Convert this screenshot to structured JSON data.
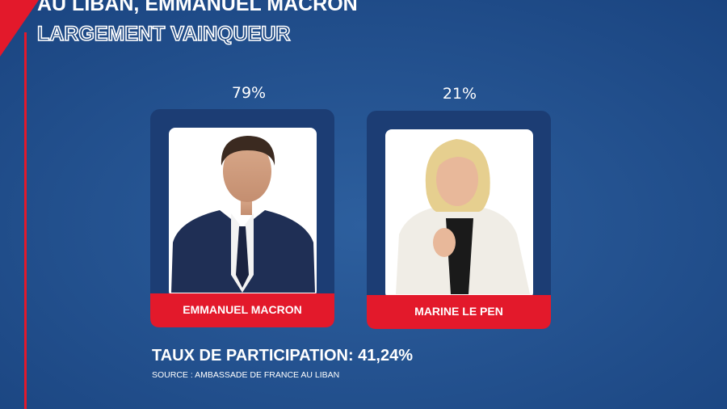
{
  "header": {
    "line1": "AU LIBAN, EMMANUEL MACRON",
    "line2": "LARGEMENT VAINQUEUR"
  },
  "candidates": [
    {
      "name": "EMMANUEL MACRON",
      "score": "79%"
    },
    {
      "name": "MARINE LE PEN",
      "score": "21%"
    }
  ],
  "participation": "TAUX DE PARTICIPATION: 41,24%",
  "source": "SOURCE : AMBASSADE DE FRANCE AU LIBAN"
}
